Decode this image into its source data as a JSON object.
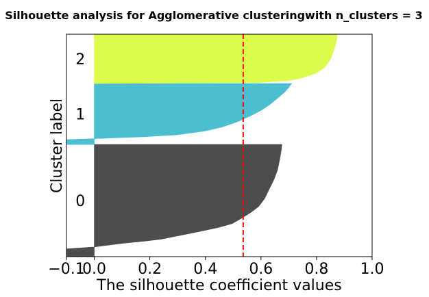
{
  "chart_data": {
    "type": "silhouette",
    "title": "Silhouette analysis for Agglomerative clusteringwith n_clusters = 3",
    "xlabel": "The silhouette coefficient values",
    "ylabel": "Cluster label",
    "xlim": [
      -0.1,
      1.0
    ],
    "xticks": [
      -0.1,
      0.0,
      0.2,
      0.4,
      0.6,
      0.8,
      1.0
    ],
    "xtick_labels": [
      "−0.1",
      "0.0",
      "0.2",
      "0.4",
      "0.6",
      "0.8",
      "1.0"
    ],
    "grid": false,
    "average_silhouette": 0.536,
    "average_line_color": "#ff0000",
    "ylim": [
      0,
      230
    ],
    "clusters": [
      {
        "label": "0",
        "color": "#4d4d4d",
        "y_lower": 0,
        "y_upper": 116,
        "profile": [
          [
            0,
            -0.1
          ],
          [
            8,
            -0.1
          ],
          [
            10,
            0.0
          ],
          [
            14,
            0.11
          ],
          [
            16,
            0.18
          ],
          [
            18,
            0.24
          ],
          [
            22,
            0.31
          ],
          [
            26,
            0.38
          ],
          [
            30,
            0.445
          ],
          [
            34,
            0.495
          ],
          [
            40,
            0.532
          ],
          [
            46,
            0.565
          ],
          [
            52,
            0.592
          ],
          [
            60,
            0.613
          ],
          [
            70,
            0.63
          ],
          [
            80,
            0.647
          ],
          [
            90,
            0.66
          ],
          [
            100,
            0.667
          ],
          [
            110,
            0.673
          ],
          [
            116,
            0.675
          ]
        ]
      },
      {
        "label": "1",
        "color": "#4bbfcf",
        "y_lower": 116,
        "y_upper": 179,
        "profile": [
          [
            116,
            -0.1
          ],
          [
            121,
            -0.1
          ],
          [
            122,
            0.0
          ],
          [
            124,
            0.18
          ],
          [
            126,
            0.3
          ],
          [
            130,
            0.4
          ],
          [
            134,
            0.46
          ],
          [
            140,
            0.52
          ],
          [
            146,
            0.565
          ],
          [
            152,
            0.605
          ],
          [
            158,
            0.635
          ],
          [
            164,
            0.66
          ],
          [
            170,
            0.685
          ],
          [
            175,
            0.7
          ],
          [
            179,
            0.71
          ]
        ]
      },
      {
        "label": "2",
        "color": "#dcfc4c",
        "y_lower": 179,
        "y_upper": 230,
        "profile": [
          [
            179,
            0.0
          ],
          [
            180,
            0.59
          ],
          [
            182,
            0.7
          ],
          [
            185,
            0.75
          ],
          [
            190,
            0.8
          ],
          [
            196,
            0.83
          ],
          [
            204,
            0.85
          ],
          [
            214,
            0.863
          ],
          [
            224,
            0.872
          ],
          [
            230,
            0.874
          ]
        ]
      }
    ]
  }
}
